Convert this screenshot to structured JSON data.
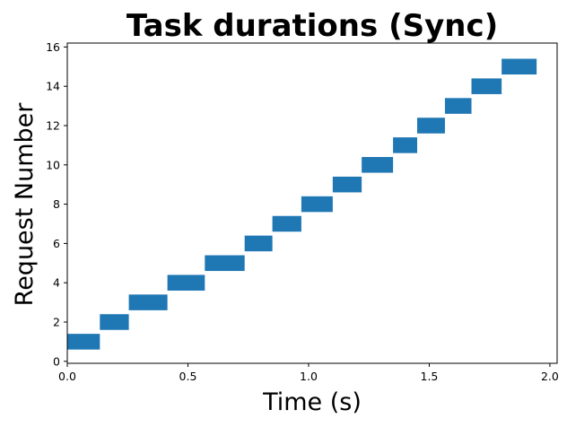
{
  "chart_data": {
    "type": "bar",
    "orientation": "horizontal",
    "title": "Task durations (Sync)",
    "xlabel": "Time (s)",
    "ylabel": "Request Number",
    "xlim": [
      0.0,
      2.03
    ],
    "ylim": [
      -0.1,
      16.2
    ],
    "xticks": [
      0.0,
      0.5,
      1.0,
      1.5,
      2.0
    ],
    "xtick_labels": [
      "0.0",
      "0.5",
      "1.0",
      "1.5",
      "2.0"
    ],
    "yticks": [
      0,
      2,
      4,
      6,
      8,
      10,
      12,
      14,
      16
    ],
    "ytick_labels": [
      "0",
      "2",
      "4",
      "6",
      "8",
      "10",
      "12",
      "14",
      "16"
    ],
    "grid": false,
    "legend": "none",
    "bar_color": "#1f77b4",
    "bar_height": 0.8,
    "tasks": [
      {
        "request": 1,
        "start": 0.0,
        "end": 0.135
      },
      {
        "request": 2,
        "start": 0.135,
        "end": 0.255
      },
      {
        "request": 3,
        "start": 0.255,
        "end": 0.415
      },
      {
        "request": 4,
        "start": 0.415,
        "end": 0.57
      },
      {
        "request": 5,
        "start": 0.57,
        "end": 0.735
      },
      {
        "request": 6,
        "start": 0.735,
        "end": 0.85
      },
      {
        "request": 7,
        "start": 0.85,
        "end": 0.97
      },
      {
        "request": 8,
        "start": 0.97,
        "end": 1.1
      },
      {
        "request": 9,
        "start": 1.1,
        "end": 1.22
      },
      {
        "request": 10,
        "start": 1.22,
        "end": 1.35
      },
      {
        "request": 11,
        "start": 1.35,
        "end": 1.45
      },
      {
        "request": 12,
        "start": 1.45,
        "end": 1.565
      },
      {
        "request": 13,
        "start": 1.565,
        "end": 1.675
      },
      {
        "request": 14,
        "start": 1.675,
        "end": 1.8
      },
      {
        "request": 15,
        "start": 1.8,
        "end": 1.945
      }
    ]
  }
}
